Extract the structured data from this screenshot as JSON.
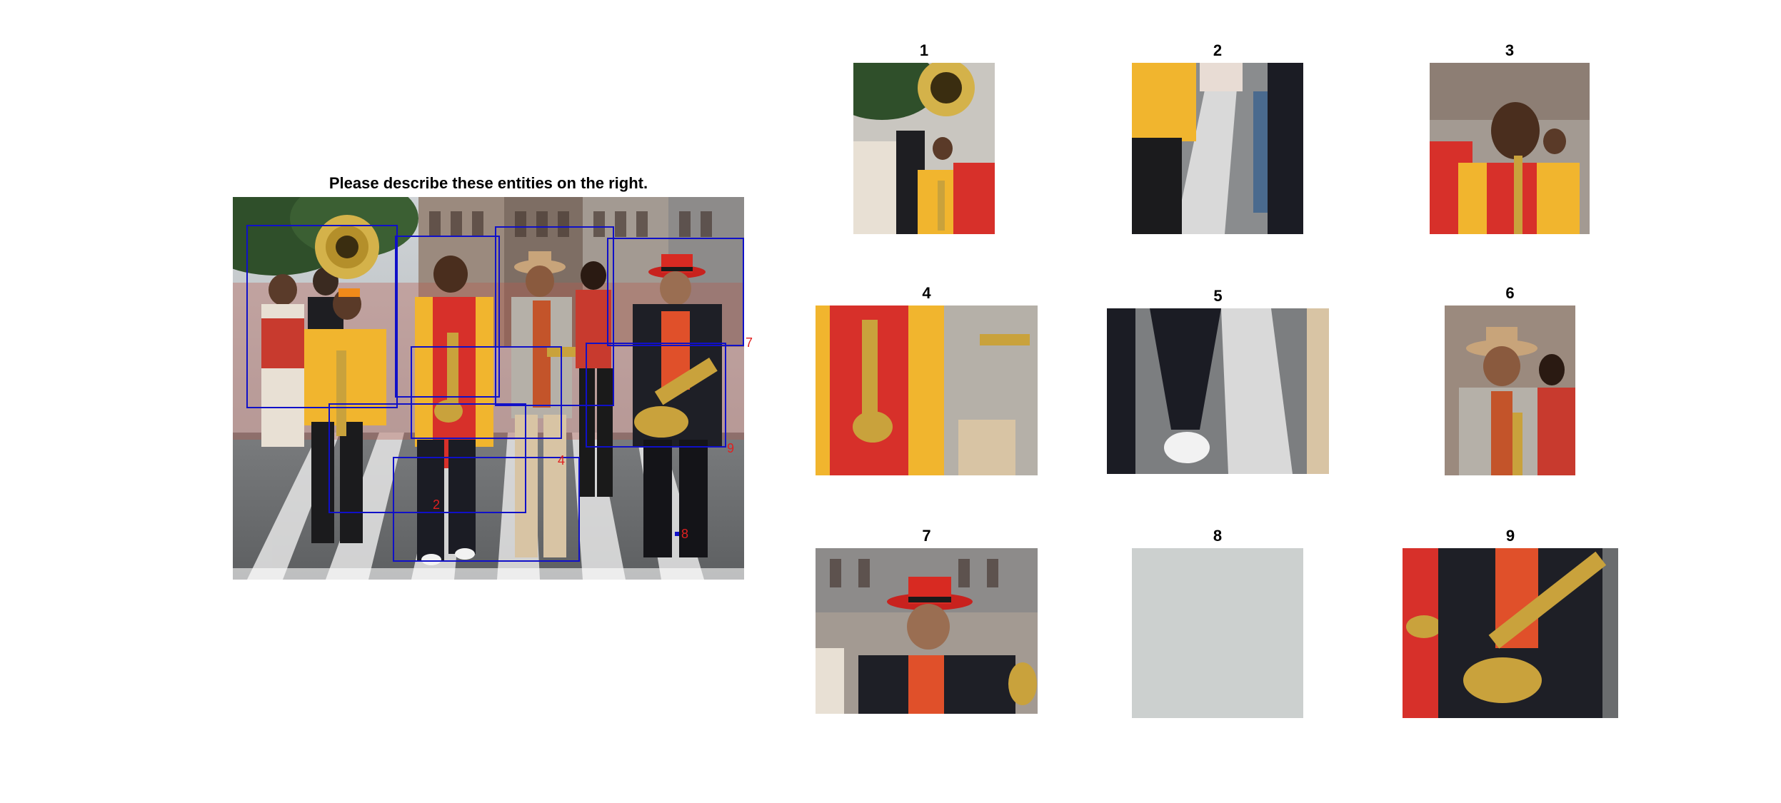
{
  "instruction": "Please describe these entities on the right.",
  "scene": {
    "box_color": "#1010c8",
    "label_color": "#e02020",
    "regions": [
      {
        "id": "1",
        "label": ""
      },
      {
        "id": "2",
        "label": "2"
      },
      {
        "id": "3",
        "label": ""
      },
      {
        "id": "4",
        "label": "4"
      },
      {
        "id": "5",
        "label": ""
      },
      {
        "id": "6",
        "label": ""
      },
      {
        "id": "7",
        "label": "7"
      },
      {
        "id": "8",
        "label": "8"
      },
      {
        "id": "9",
        "label": "9"
      }
    ]
  },
  "entities": [
    {
      "id": "1",
      "label": "1"
    },
    {
      "id": "2",
      "label": "2"
    },
    {
      "id": "3",
      "label": "3"
    },
    {
      "id": "4",
      "label": "4"
    },
    {
      "id": "5",
      "label": "5"
    },
    {
      "id": "6",
      "label": "6"
    },
    {
      "id": "7",
      "label": "7"
    },
    {
      "id": "8",
      "label": "8"
    },
    {
      "id": "9",
      "label": "9"
    }
  ]
}
